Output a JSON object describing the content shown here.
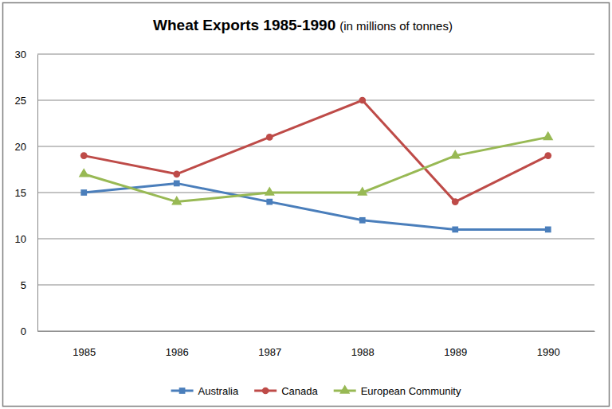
{
  "chart_data": {
    "type": "line",
    "title": "Wheat Exports 1985-1990",
    "subtitle": "(in millions of tonnes)",
    "categories": [
      "1985",
      "1986",
      "1987",
      "1988",
      "1989",
      "1990"
    ],
    "series": [
      {
        "name": "Australia",
        "color": "#4a7ebb",
        "marker": "square",
        "values": [
          15,
          16,
          14,
          12,
          11,
          11
        ]
      },
      {
        "name": "Canada",
        "color": "#be4b48",
        "marker": "circle",
        "values": [
          19,
          17,
          21,
          25,
          14,
          19
        ]
      },
      {
        "name": "European Community",
        "color": "#98b954",
        "marker": "triangle",
        "values": [
          17,
          14,
          15,
          15,
          19,
          21
        ]
      }
    ],
    "ylim": [
      0,
      30
    ],
    "yticks": [
      0,
      5,
      10,
      15,
      20,
      25,
      30
    ],
    "grid": true,
    "legend": "bottom"
  }
}
